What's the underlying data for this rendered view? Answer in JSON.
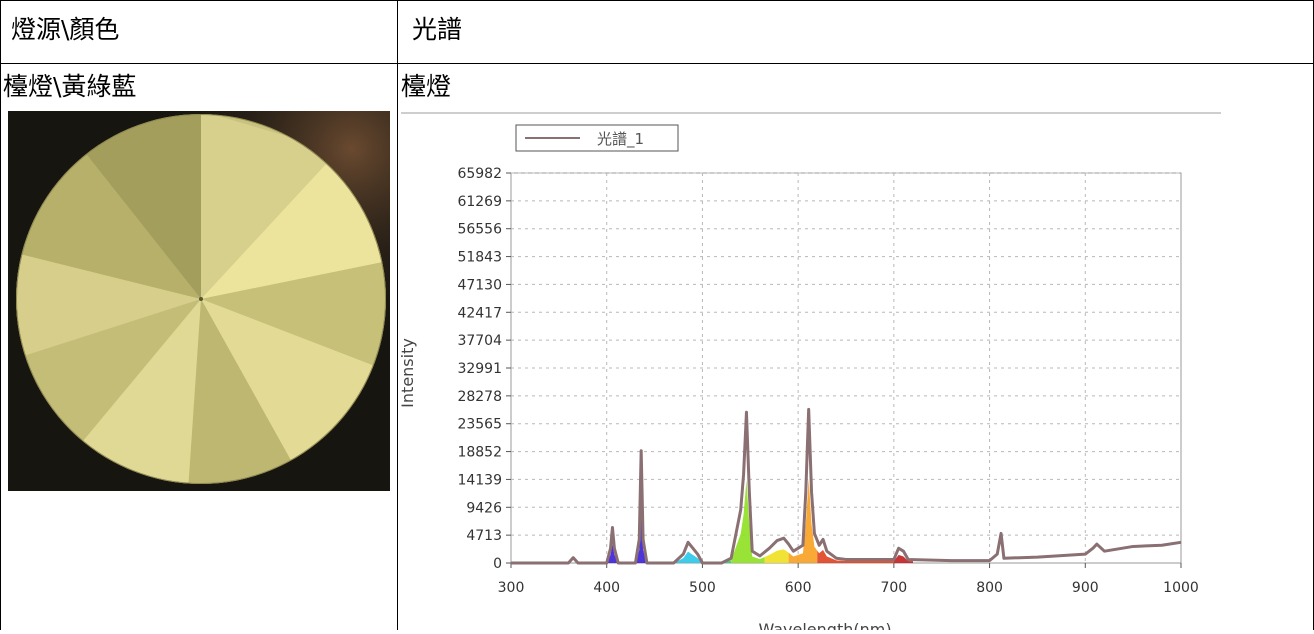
{
  "table": {
    "header_left": "燈源\\顏色",
    "header_right": "光譜",
    "row_left_label": "檯燈\\黃綠藍",
    "row_right_label": "檯燈"
  },
  "chart_data": {
    "type": "line",
    "title": "",
    "legend": [
      "光譜_1"
    ],
    "legend_position": "top-left",
    "xlabel": "Wavelength(nm)",
    "ylabel": "Intensity",
    "xlim": [
      300,
      1000
    ],
    "ylim": [
      0,
      65982
    ],
    "grid": true,
    "x_ticks": [
      300,
      400,
      500,
      600,
      700,
      800,
      900,
      1000
    ],
    "y_ticks": [
      0,
      4713,
      9426,
      14139,
      18852,
      23565,
      28278,
      32991,
      37704,
      42417,
      47130,
      51843,
      56556,
      61269,
      65982
    ],
    "series": [
      {
        "name": "光譜_1",
        "color": "#8a6f73",
        "x": [
          300,
          360,
          365,
          370,
          400,
          404,
          406,
          408,
          412,
          430,
          434,
          436,
          438,
          442,
          470,
          480,
          485,
          490,
          495,
          500,
          520,
          530,
          540,
          543,
          546,
          549,
          552,
          560,
          570,
          578,
          585,
          590,
          595,
          605,
          608,
          611,
          614,
          617,
          622,
          626,
          630,
          640,
          650,
          700,
          705,
          710,
          715,
          760,
          800,
          808,
          812,
          815,
          850,
          900,
          908,
          912,
          920,
          950,
          980,
          1000
        ],
        "values": [
          0,
          0,
          900,
          0,
          0,
          2500,
          6000,
          2500,
          0,
          0,
          4000,
          19000,
          4000,
          0,
          0,
          1500,
          3500,
          2500,
          1500,
          0,
          0,
          800,
          9000,
          15000,
          25500,
          12000,
          2000,
          1200,
          2500,
          3800,
          4200,
          3200,
          2000,
          3000,
          12000,
          26000,
          12000,
          5000,
          3000,
          4000,
          2000,
          800,
          600,
          600,
          2500,
          2000,
          600,
          400,
          400,
          1500,
          5000,
          800,
          1000,
          1500,
          2500,
          3200,
          2000,
          2800,
          3000,
          3500
        ]
      }
    ]
  }
}
